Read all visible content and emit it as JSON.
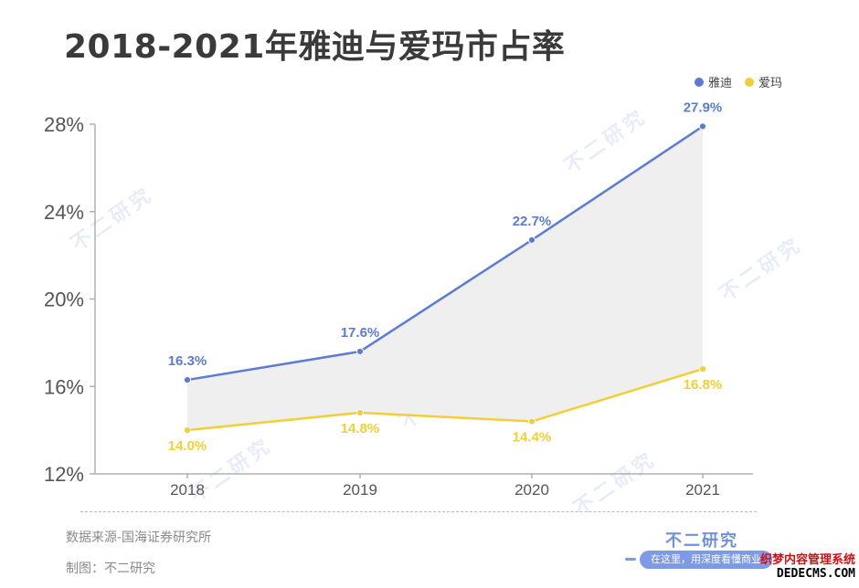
{
  "title": "2018-2021年雅迪与爱玛市占率",
  "colors": {
    "yadi": "#5b7bd6",
    "aima": "#f1cf38",
    "band": "#efefef",
    "axis": "#b0b0b0"
  },
  "legend": {
    "items": [
      {
        "label": "雅迪",
        "color": "#5b7bd6"
      },
      {
        "label": "爱玛",
        "color": "#f1cf38"
      }
    ]
  },
  "chart_data": {
    "type": "line",
    "title": "2018-2021年雅迪与爱玛市占率",
    "x": [
      "2018",
      "2019",
      "2020",
      "2021"
    ],
    "ylim": [
      12,
      28
    ],
    "yticks": [
      "12%",
      "16%",
      "20%",
      "24%",
      "28%"
    ],
    "ytick_values": [
      12,
      16,
      20,
      24,
      28
    ],
    "grid": false,
    "legend": "top-right",
    "shaded_between_series": true,
    "series": [
      {
        "name": "雅迪",
        "values": [
          16.3,
          17.6,
          22.7,
          27.9
        ],
        "labels": [
          "16.3%",
          "17.6%",
          "22.7%",
          "27.9%"
        ],
        "color": "#5b7bd6"
      },
      {
        "name": "爱玛",
        "values": [
          14.0,
          14.8,
          14.4,
          16.8
        ],
        "labels": [
          "14.0%",
          "14.8%",
          "14.4%",
          "16.8%"
        ],
        "color": "#f1cf38"
      }
    ]
  },
  "footer": {
    "source": "数据来源-国海证券研究所",
    "maker": "制图：不二研究",
    "brand": "不二研究",
    "brand_tagline": "在这里，用深度看懂商业"
  },
  "watermark": {
    "text": "不二研究"
  },
  "stamp": {
    "line1": "织梦内容管理系统",
    "line2": "DEDECMS.COM"
  }
}
